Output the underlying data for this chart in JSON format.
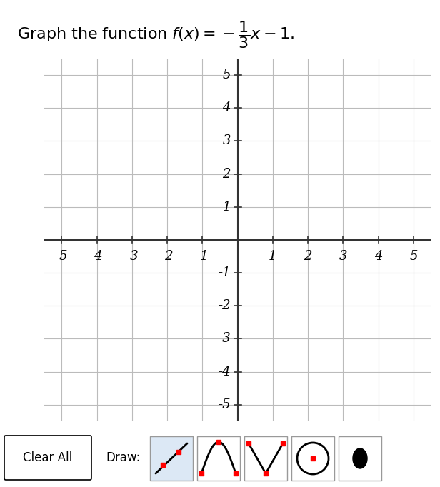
{
  "xlim": [
    -5.5,
    5.5
  ],
  "ylim": [
    -5.5,
    5.5
  ],
  "xticks": [
    -5,
    -4,
    -3,
    -2,
    -1,
    1,
    2,
    3,
    4,
    5
  ],
  "yticks": [
    -5,
    -4,
    -3,
    -2,
    -1,
    1,
    2,
    3,
    4,
    5
  ],
  "grid_color": "#bbbbbb",
  "axis_color": "#333333",
  "background_color": "#ffffff",
  "tick_fontsize": 13,
  "clear_all_label": "Clear All",
  "draw_label": "Draw:"
}
